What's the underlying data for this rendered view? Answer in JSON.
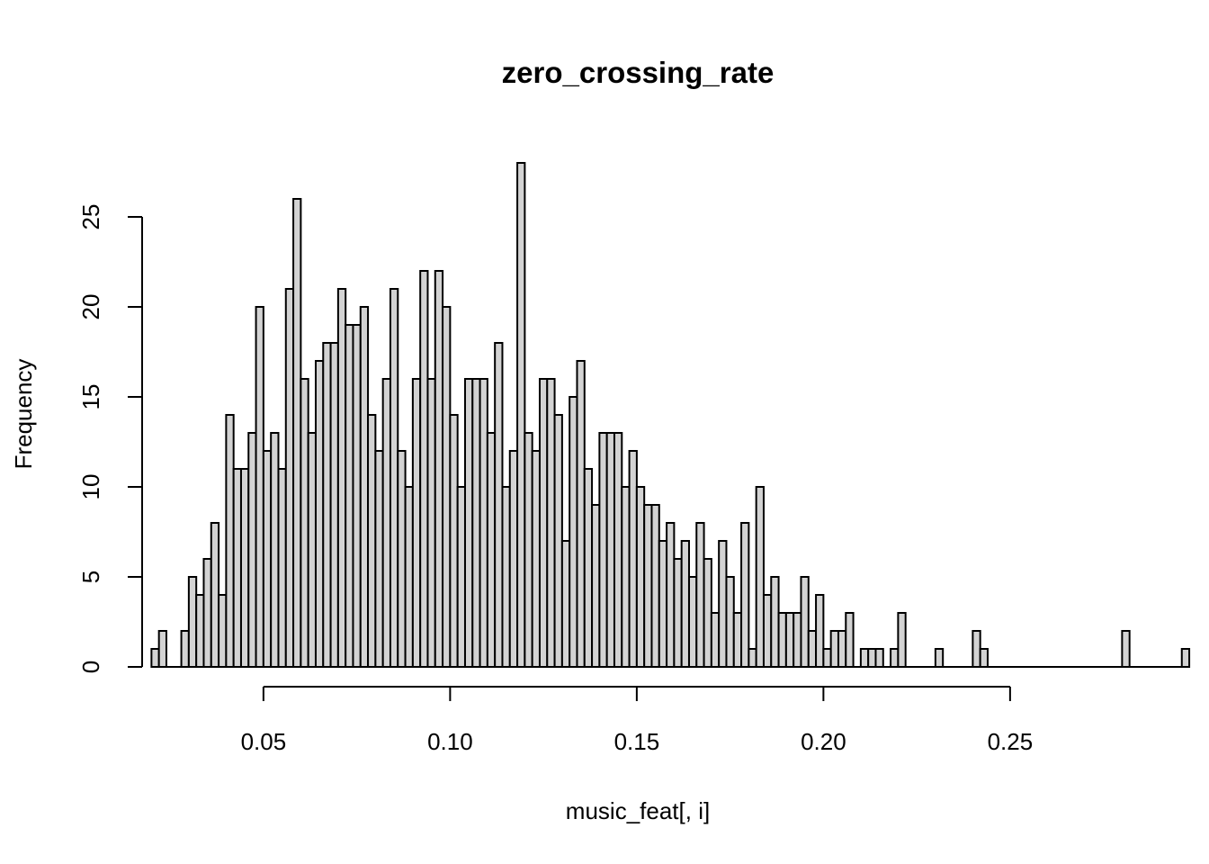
{
  "chart_data": {
    "type": "bar",
    "title": "zero_crossing_rate",
    "xlabel": "music_feat[, i]",
    "ylabel": "Frequency",
    "xlim": [
      0.0175,
      0.2775
    ],
    "ylim": [
      0,
      28
    ],
    "xticks": [
      0.05,
      0.1,
      0.15,
      0.2,
      0.25
    ],
    "xtick_labels": [
      "0.05",
      "0.10",
      "0.15",
      "0.20",
      "0.25"
    ],
    "yticks": [
      0,
      5,
      10,
      15,
      20,
      25
    ],
    "ytick_labels": [
      "0",
      "5",
      "10",
      "15",
      "20",
      "25"
    ],
    "bin_width": 0.002,
    "bin_start": 0.02,
    "counts": [
      1,
      2,
      0,
      0,
      2,
      5,
      4,
      6,
      8,
      4,
      14,
      11,
      11,
      13,
      20,
      12,
      13,
      11,
      21,
      26,
      16,
      13,
      17,
      18,
      18,
      21,
      19,
      19,
      20,
      14,
      12,
      16,
      21,
      12,
      10,
      16,
      22,
      16,
      22,
      20,
      14,
      10,
      16,
      16,
      16,
      13,
      18,
      10,
      12,
      28,
      13,
      12,
      16,
      16,
      14,
      7,
      15,
      17,
      11,
      9,
      13,
      13,
      13,
      10,
      12,
      10,
      9,
      9,
      7,
      8,
      6,
      7,
      5,
      8,
      6,
      3,
      7,
      5,
      3,
      8,
      1,
      10,
      4,
      5,
      3,
      3,
      3,
      5,
      2,
      4,
      1,
      2,
      2,
      3,
      0,
      1,
      1,
      1,
      0,
      1,
      3,
      0,
      0,
      0,
      0,
      1,
      0,
      0,
      0,
      0,
      2,
      1,
      0,
      0,
      0,
      0,
      0,
      0,
      0,
      0,
      0,
      0,
      0,
      0,
      0,
      0,
      0,
      0,
      0,
      0,
      2,
      0,
      0,
      0,
      0,
      0,
      0,
      0,
      1
    ],
    "grid": false,
    "legend": "none"
  }
}
